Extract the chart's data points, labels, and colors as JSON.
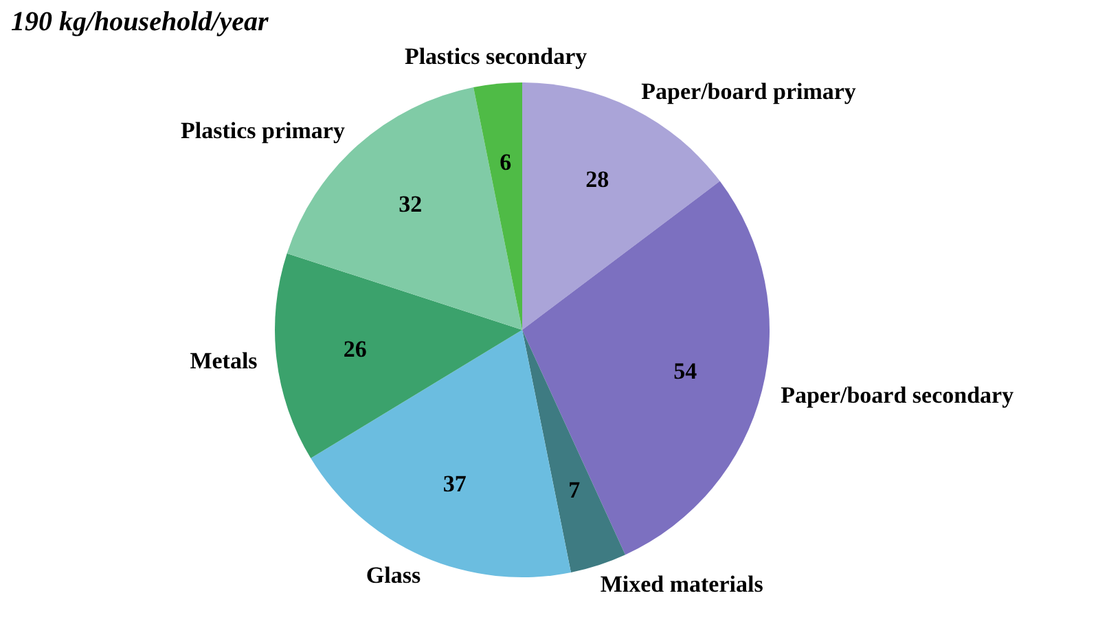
{
  "chart_data": {
    "type": "pie",
    "subtitle": "190 kg/household/year",
    "categories": [
      "Paper/board primary",
      "Paper/board secondary",
      "Mixed materials",
      "Glass",
      "Metals",
      "Plastics primary",
      "Plastics secondary"
    ],
    "values": [
      28,
      54,
      7,
      37,
      26,
      32,
      6
    ],
    "colors": [
      "#aaa4d8",
      "#7c70c0",
      "#3e7b82",
      "#6bbde0",
      "#3ba26c",
      "#80cba6",
      "#4fbb46"
    ],
    "data_labels": true
  }
}
